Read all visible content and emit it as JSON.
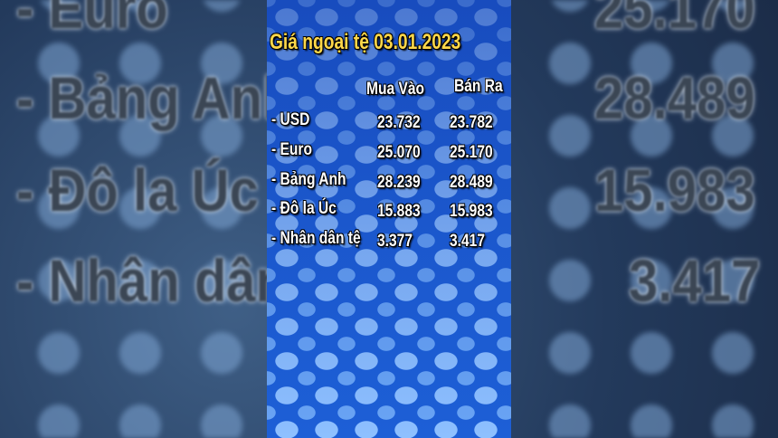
{
  "header": {
    "title": "Giá ngoại tệ 03.01.2023",
    "columns": [
      "Mua Vào",
      "Bán Ra"
    ]
  },
  "table": {
    "rows": [
      [
        "- USD",
        "23.732",
        "23.782"
      ],
      [
        "- Euro",
        "25.070",
        "25.170"
      ],
      [
        "- Bảng Anh",
        "28.239",
        "28.489"
      ],
      [
        "- Đô la Úc",
        "15.883",
        "15.983"
      ],
      [
        "- Nhân dân tệ",
        "3.377",
        "3.417"
      ]
    ]
  }
}
